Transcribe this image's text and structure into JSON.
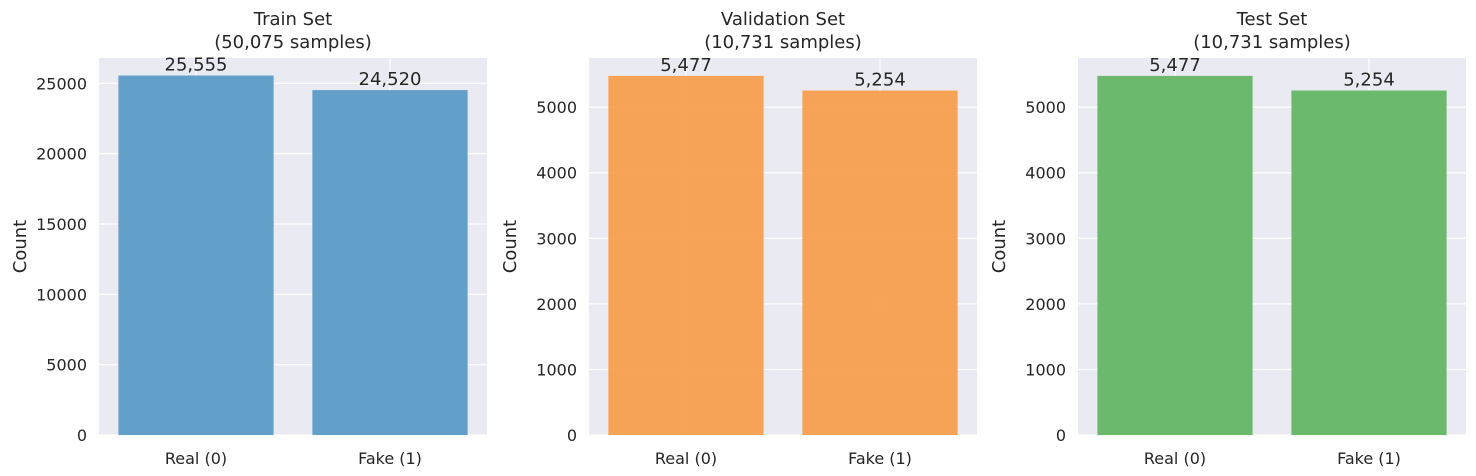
{
  "chart_data": [
    {
      "type": "bar",
      "title": "Train Set",
      "subtitle": "(50,075 samples)",
      "ylabel": "Count",
      "xlabel": "",
      "categories": [
        "Real (0)",
        "Fake (1)"
      ],
      "values": [
        25555,
        24520
      ],
      "value_labels": [
        "25,555",
        "24,520"
      ],
      "ylim": [
        0,
        26800
      ],
      "yticks": [
        0,
        5000,
        10000,
        15000,
        20000,
        25000
      ],
      "color": "#5b9bc6",
      "grid": true
    },
    {
      "type": "bar",
      "title": "Validation Set",
      "subtitle": "(10,731 samples)",
      "ylabel": "Count",
      "xlabel": "",
      "categories": [
        "Real (0)",
        "Fake (1)"
      ],
      "values": [
        5477,
        5254
      ],
      "value_labels": [
        "5,477",
        "5,254"
      ],
      "ylim": [
        0,
        5750
      ],
      "yticks": [
        0,
        1000,
        2000,
        3000,
        4000,
        5000
      ],
      "color": "#f79f4f",
      "grid": true
    },
    {
      "type": "bar",
      "title": "Test Set",
      "subtitle": "(10,731 samples)",
      "ylabel": "Count",
      "xlabel": "",
      "categories": [
        "Real (0)",
        "Fake (1)"
      ],
      "values": [
        5477,
        5254
      ],
      "value_labels": [
        "5,477",
        "5,254"
      ],
      "ylim": [
        0,
        5750
      ],
      "yticks": [
        0,
        1000,
        2000,
        3000,
        4000,
        5000
      ],
      "color": "#63b664",
      "grid": true
    }
  ]
}
